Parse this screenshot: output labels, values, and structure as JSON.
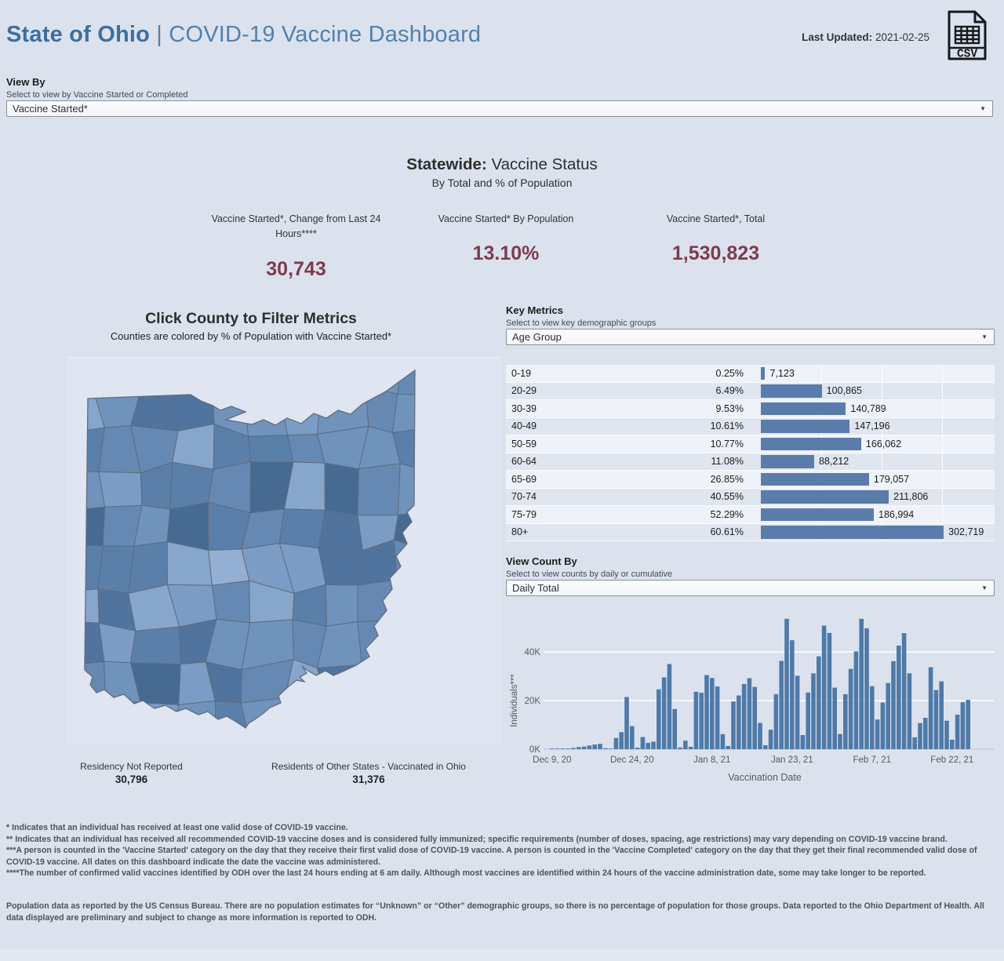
{
  "header": {
    "title_bold": "State of Ohio",
    "title_sep": " | ",
    "title_rest": "COVID-19 Vaccine Dashboard",
    "last_updated_label": "Last Updated:",
    "last_updated_value": " 2021-02-25",
    "csv_icon_label": "CSV"
  },
  "view_by": {
    "label": "View By",
    "hint": "Select to view by Vaccine Started or Completed",
    "selected": "Vaccine Started*"
  },
  "statewide": {
    "heading_bold": "Statewide:",
    "heading_rest": " Vaccine Status",
    "subheading": "By Total and % of Population",
    "metrics": [
      {
        "label": "Vaccine Started*, Change from Last 24 Hours****",
        "value": "30,743"
      },
      {
        "label": "Vaccine Started* By Population",
        "value": "13.10%"
      },
      {
        "label": "Vaccine Started*, Total",
        "value": "1,530,823"
      }
    ]
  },
  "map": {
    "title": "Click County to Filter Metrics",
    "subtitle": "Counties are colored by % of Population with Vaccine Started*",
    "palette": [
      "#93b0d4",
      "#86a6cc",
      "#7b9cc5",
      "#7093bc",
      "#6589b3",
      "#5a7fa9",
      "#50749e",
      "#476a92"
    ],
    "border_color": "#5f6c80",
    "stats": [
      {
        "label": "Residency Not Reported",
        "value": "30,796"
      },
      {
        "label": "Residents of Other States - Vaccinated in Ohio",
        "value": "31,376"
      }
    ]
  },
  "key_metrics": {
    "label": "Key Metrics",
    "hint": "Select to view key demographic groups",
    "selected": "Age Group",
    "bar_color": "#5a7caa",
    "bar_axis_max": 396000,
    "bar_gridlines": [
      100000,
      200000,
      300000
    ],
    "rows": [
      {
        "group": "0-19",
        "pct": "0.25%",
        "count": "7,123",
        "value": 7123
      },
      {
        "group": "20-29",
        "pct": "6.49%",
        "count": "100,865",
        "value": 100865
      },
      {
        "group": "30-39",
        "pct": "9.53%",
        "count": "140,789",
        "value": 140789
      },
      {
        "group": "40-49",
        "pct": "10.61%",
        "count": "147,196",
        "value": 147196
      },
      {
        "group": "50-59",
        "pct": "10.77%",
        "count": "166,062",
        "value": 166062
      },
      {
        "group": "60-64",
        "pct": "11.08%",
        "count": "88,212",
        "value": 88212
      },
      {
        "group": "65-69",
        "pct": "26.85%",
        "count": "179,057",
        "value": 179057
      },
      {
        "group": "70-74",
        "pct": "40.55%",
        "count": "211,806",
        "value": 211806
      },
      {
        "group": "75-79",
        "pct": "52.29%",
        "count": "186,994",
        "value": 186994
      },
      {
        "group": "80+",
        "pct": "60.61%",
        "count": "302,719",
        "value": 302719
      }
    ]
  },
  "view_count_by": {
    "label": "View Count By",
    "hint": "Select to view counts by daily or cumulative",
    "selected": "Daily Total"
  },
  "chart_data": {
    "type": "bar",
    "title": "Daily Total of Individuals with Vaccine Started",
    "xlabel": "Vaccination Date",
    "ylabel": "Individuals***",
    "start_date": "2020-12-09",
    "x_tick_labels": [
      "Dec 9, 20",
      "Dec 24, 20",
      "Jan 8, 21",
      "Jan 23, 21",
      "Feb 7, 21",
      "Feb 22, 21"
    ],
    "x_tick_day_index": [
      0,
      15,
      30,
      45,
      60,
      75
    ],
    "y_tick_labels": [
      "0K",
      "20K",
      "40K"
    ],
    "y_tick_values": [
      0,
      20000,
      40000
    ],
    "ylim": [
      0,
      55000
    ],
    "grid": true,
    "bar_color": "#4e7aa9",
    "values": [
      200,
      100,
      300,
      150,
      500,
      900,
      1100,
      1500,
      1900,
      2200,
      400,
      100,
      4600,
      7000,
      21500,
      9500,
      600,
      5000,
      2600,
      3100,
      24600,
      29500,
      35000,
      16500,
      700,
      3500,
      1000,
      23600,
      23200,
      30500,
      29300,
      25800,
      6200,
      1300,
      19600,
      22100,
      26800,
      29200,
      25600,
      10800,
      1600,
      8000,
      22600,
      36300,
      53600,
      44800,
      30200,
      5800,
      23300,
      31200,
      38200,
      50800,
      47800,
      25300,
      6300,
      22600,
      33000,
      40200,
      53600,
      49700,
      25900,
      12200,
      19200,
      27200,
      36200,
      42600,
      47700,
      31200,
      4900,
      10700,
      12900,
      33700,
      24300,
      27900,
      11700,
      3900,
      14200,
      19300,
      20300
    ]
  },
  "footnotes": [
    "* Indicates that an individual has received at least one valid dose of COVID-19 vaccine.",
    "** Indicates that an individual has received all recommended COVID-19 vaccine doses and is considered fully immunized; specific requirements (number of doses, spacing, age restrictions) may vary depending on COVID-19 vaccine brand.",
    "***A person is counted in the 'Vaccine Started' category on the day that they receive their first valid dose of COVID-19 vaccine.  A person is counted in the 'Vaccine Completed' category on the day that they get their final recommended valid dose of COVID-19 vaccine. All dates on this dashboard indicate the date the vaccine was administered.",
    "****The number of confirmed valid vaccines identified by ODH over the last 24 hours ending at 6 am daily. Although most vaccines are identified within 24 hours of the vaccine administration date, some may take longer to be reported."
  ],
  "footer_paragraph": "Population data as reported by the US Census Bureau. There are no population estimates for “Unknown” or “Other” demographic groups, so there is no percentage of population for those groups.  Data reported to the Ohio Department of Health.  All data displayed are preliminary and subject to change as more information is reported to ODH."
}
